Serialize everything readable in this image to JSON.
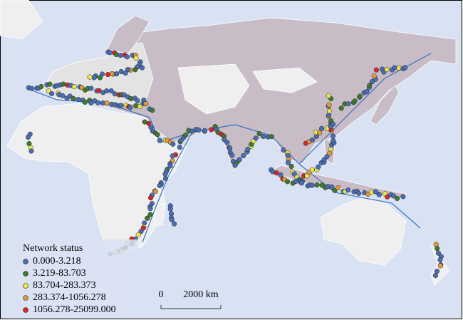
{
  "legend": {
    "title": "Network status",
    "items": [
      {
        "label": "0.000-3.218",
        "color": "#4a6db3"
      },
      {
        "label": "3.219-83.703",
        "color": "#3f7a2e"
      },
      {
        "label": "83.704-283.373",
        "color": "#e8e84a"
      },
      {
        "label": "283.374-1056.278",
        "color": "#e09a3a"
      },
      {
        "label": "1056.278-25099.000",
        "color": "#d9252a"
      }
    ]
  },
  "scale_bar": {
    "start": "0",
    "end": "2000 km"
  }
}
